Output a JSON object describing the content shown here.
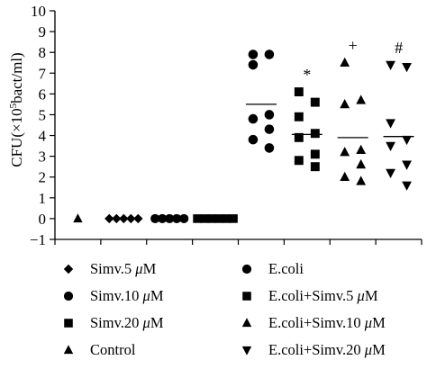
{
  "chart_data": {
    "type": "scatter",
    "ylabel_parts": {
      "pre": "CFU(×10",
      "sup": "5",
      "post": "bact/ml)"
    },
    "ylim": [
      -1,
      10
    ],
    "yticks": [
      "−1",
      "0",
      "1",
      "2",
      "3",
      "4",
      "5",
      "6",
      "7",
      "8",
      "9",
      "10"
    ],
    "xlabel": "",
    "grid": false,
    "legend_position": "bottom",
    "series": [
      {
        "name": "Control",
        "marker": "triangle-up",
        "values": [
          0
        ],
        "mean": null,
        "annotation": ""
      },
      {
        "name": "Simv.5 μM",
        "marker": "diamond",
        "values": [
          0,
          0,
          0,
          0,
          0
        ],
        "mean": null,
        "annotation": ""
      },
      {
        "name": "Simv.10 μM",
        "marker": "circle",
        "values": [
          0,
          0,
          0,
          0,
          0
        ],
        "mean": null,
        "annotation": ""
      },
      {
        "name": "Simv.20 μM",
        "marker": "square",
        "values": [
          0,
          0,
          0,
          0,
          0,
          0
        ],
        "mean": null,
        "annotation": ""
      },
      {
        "name": "E.coli",
        "marker": "circle",
        "values": [
          7.9,
          7.9,
          7.4,
          5.0,
          4.8,
          4.3,
          3.8,
          3.4
        ],
        "mean": 5.5,
        "annotation": ""
      },
      {
        "name": "E.coli+Simv.5 μM",
        "marker": "square",
        "values": [
          6.1,
          5.6,
          4.9,
          4.1,
          3.9,
          3.1,
          2.8,
          2.5
        ],
        "mean": 4.05,
        "annotation": "*"
      },
      {
        "name": "E.coli+Simv.10 μM",
        "marker": "triangle-up",
        "values": [
          7.5,
          5.7,
          5.5,
          3.3,
          3.2,
          2.6,
          2.0,
          1.8
        ],
        "mean": 3.9,
        "annotation": "+"
      },
      {
        "name": "E.coli+Simv.20 μM",
        "marker": "triangle-down",
        "values": [
          7.4,
          7.3,
          4.6,
          3.8,
          3.5,
          2.6,
          2.2,
          1.6
        ],
        "mean": 3.95,
        "annotation": "#"
      }
    ]
  },
  "legend": {
    "left": [
      {
        "marker": "diamond",
        "label": "Simv.5 μM"
      },
      {
        "marker": "circle",
        "label": "Simv.10 μM"
      },
      {
        "marker": "square",
        "label": "Simv.20 μM"
      },
      {
        "marker": "triangle-up",
        "label": "Control"
      }
    ],
    "right": [
      {
        "marker": "circle",
        "label": "E.coli"
      },
      {
        "marker": "square",
        "label": "E.coli+Simv.5 μM"
      },
      {
        "marker": "triangle-up",
        "label": "E.coli+Simv.10 μM"
      },
      {
        "marker": "triangle-down",
        "label": "E.coli+Simv.20 μM"
      }
    ]
  }
}
